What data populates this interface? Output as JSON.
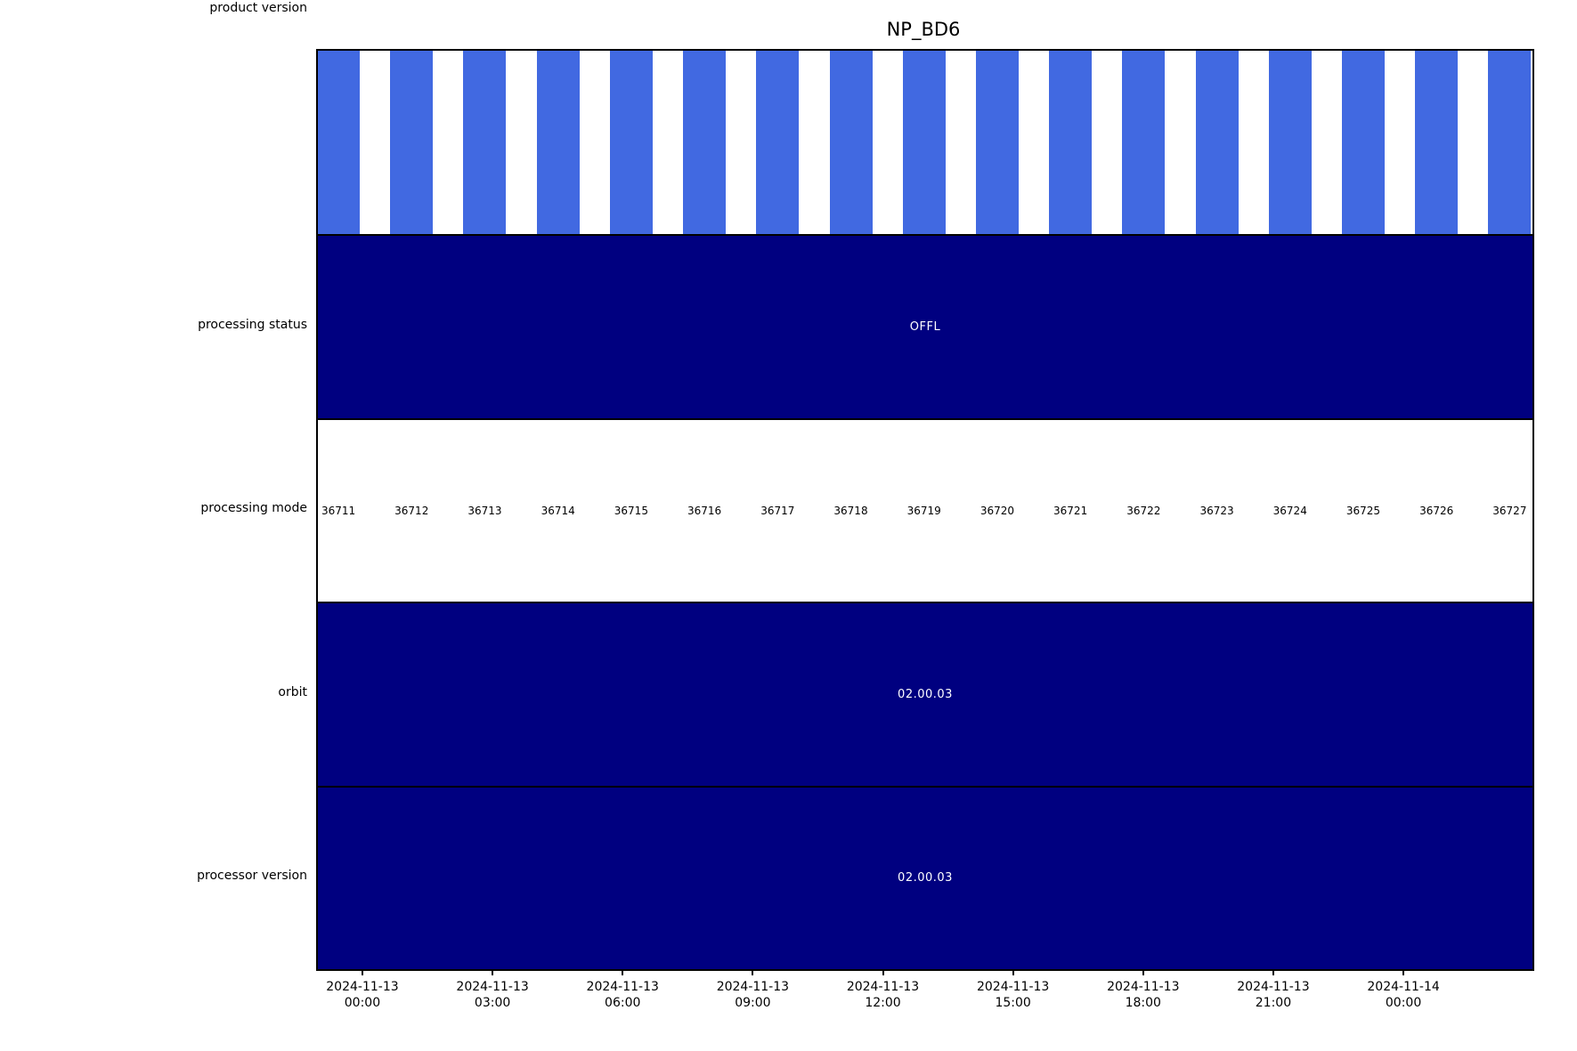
{
  "chart_data": {
    "type": "bar",
    "subtype": "categorical-status-timeline",
    "title": "NP_BD6",
    "grid": false,
    "legend": null,
    "colors": {
      "status_bar_blue": "#4169E1",
      "band_navy": "#000080",
      "band_text": "#ffffff",
      "axis_black": "#000000"
    },
    "x_axis": {
      "tick_count": 9,
      "ticks": [
        {
          "date": "2024-11-13",
          "time": "00:00"
        },
        {
          "date": "2024-11-13",
          "time": "03:00"
        },
        {
          "date": "2024-11-13",
          "time": "06:00"
        },
        {
          "date": "2024-11-13",
          "time": "09:00"
        },
        {
          "date": "2024-11-13",
          "time": "12:00"
        },
        {
          "date": "2024-11-13",
          "time": "15:00"
        },
        {
          "date": "2024-11-13",
          "time": "18:00"
        },
        {
          "date": "2024-11-13",
          "time": "21:00"
        },
        {
          "date": "2024-11-14",
          "time": "00:00"
        }
      ]
    },
    "rows": [
      {
        "label": "processing status",
        "type": "bars",
        "bar_color": "#4169E1",
        "bar_count": 17,
        "note": "one blue bar per orbit, all 17 orbits present"
      },
      {
        "label": "processing mode",
        "type": "band",
        "value": "OFFL",
        "bg": "#000080",
        "text_color": "#ffffff"
      },
      {
        "label": "orbit",
        "type": "values",
        "values": [
          36711,
          36712,
          36713,
          36714,
          36715,
          36716,
          36717,
          36718,
          36719,
          36720,
          36721,
          36722,
          36723,
          36724,
          36725,
          36726,
          36727
        ]
      },
      {
        "label": "processor version",
        "type": "band",
        "value": "02.00.03",
        "bg": "#000080",
        "text_color": "#ffffff"
      },
      {
        "label": "product version",
        "type": "band",
        "value": "02.00.03",
        "bg": "#000080",
        "text_color": "#ffffff"
      }
    ]
  }
}
